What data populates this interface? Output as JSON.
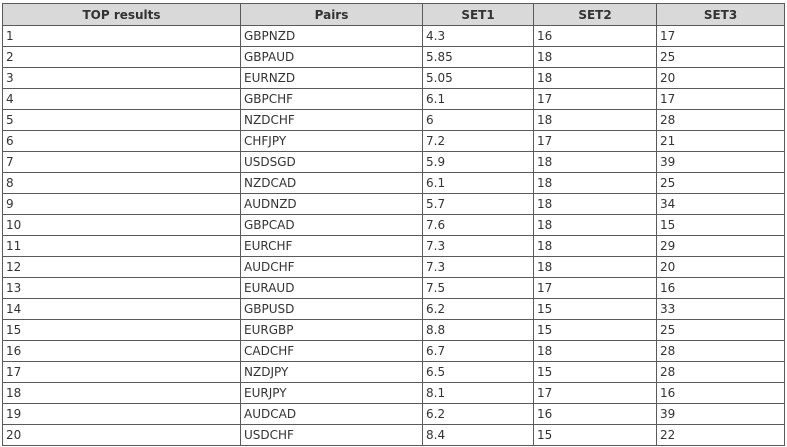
{
  "table": {
    "headers": [
      "TOP results",
      "Pairs",
      "SET1",
      "SET2",
      "SET3"
    ],
    "rows": [
      [
        "1",
        "GBPNZD",
        "4.3",
        "16",
        "17"
      ],
      [
        "2",
        "GBPAUD",
        "5.85",
        "18",
        "25"
      ],
      [
        "3",
        "EURNZD",
        "5.05",
        "18",
        "20"
      ],
      [
        "4",
        "GBPCHF",
        "6.1",
        "17",
        "17"
      ],
      [
        "5",
        "NZDCHF",
        "6",
        "18",
        "28"
      ],
      [
        "6",
        "CHFJPY",
        "7.2",
        "17",
        "21"
      ],
      [
        "7",
        "USDSGD",
        "5.9",
        "18",
        "39"
      ],
      [
        "8",
        "NZDCAD",
        "6.1",
        "18",
        "25"
      ],
      [
        "9",
        "AUDNZD",
        "5.7",
        "18",
        "34"
      ],
      [
        "10",
        "GBPCAD",
        "7.6",
        "18",
        "15"
      ],
      [
        "11",
        "EURCHF",
        "7.3",
        "18",
        "29"
      ],
      [
        "12",
        "AUDCHF",
        "7.3",
        "18",
        "20"
      ],
      [
        "13",
        "EURAUD",
        "7.5",
        "17",
        "16"
      ],
      [
        "14",
        "GBPUSD",
        "6.2",
        "15",
        "33"
      ],
      [
        "15",
        "EURGBP",
        "8.8",
        "15",
        "25"
      ],
      [
        "16",
        "CADCHF",
        "6.7",
        "18",
        "28"
      ],
      [
        "17",
        "NZDJPY",
        "6.5",
        "15",
        "28"
      ],
      [
        "18",
        "EURJPY",
        "8.1",
        "17",
        "16"
      ],
      [
        "19",
        "AUDCAD",
        "6.2",
        "16",
        "39"
      ],
      [
        "20",
        "USDCHF",
        "8.4",
        "15",
        "22"
      ]
    ]
  }
}
